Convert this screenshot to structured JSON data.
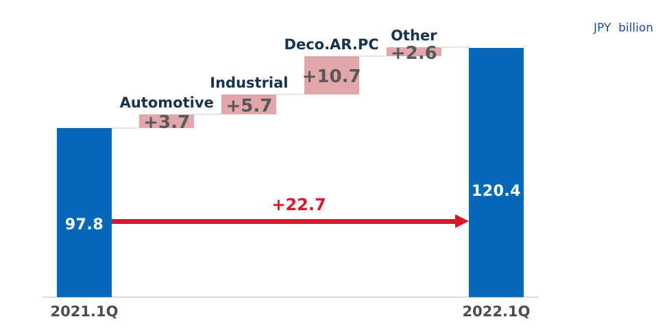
{
  "chart_data": {
    "type": "waterfall",
    "title": "",
    "unit_label": "JPY  billion",
    "layout_hints": {
      "baseline_value": 50,
      "grid": false,
      "legend": false,
      "categories_axis": [
        "2021.1Q",
        "2022.1Q"
      ]
    },
    "start_bar": {
      "axis_label": "2021.1Q",
      "value": 97.8,
      "display": "97.8"
    },
    "end_bar": {
      "axis_label": "2022.1Q",
      "value": 120.4,
      "display": "120.4"
    },
    "deltas": [
      {
        "label": "Automotive",
        "value": 3.7,
        "display": "+3.7"
      },
      {
        "label": "Industrial",
        "value": 5.7,
        "display": "+5.7"
      },
      {
        "label": "Deco.AR.PC",
        "value": 10.7,
        "display": "+10.7"
      },
      {
        "label": "Other",
        "value": 2.6,
        "display": "+2.6"
      }
    ],
    "total_change": {
      "value": 22.7,
      "display": "+22.7"
    },
    "colors": {
      "bar_blue": "#0568b8",
      "delta_pink": "#e2a7aa",
      "delta_text": "#595959",
      "category_text": "#16344e",
      "arrow_red": "#d7182e",
      "axis_text": "#4d4d4d",
      "bar_value_text": "#ffffff",
      "axis_line": "#d9d9d9",
      "connector": "#e4e4e4",
      "unit_text": "#1f4e9f"
    }
  }
}
